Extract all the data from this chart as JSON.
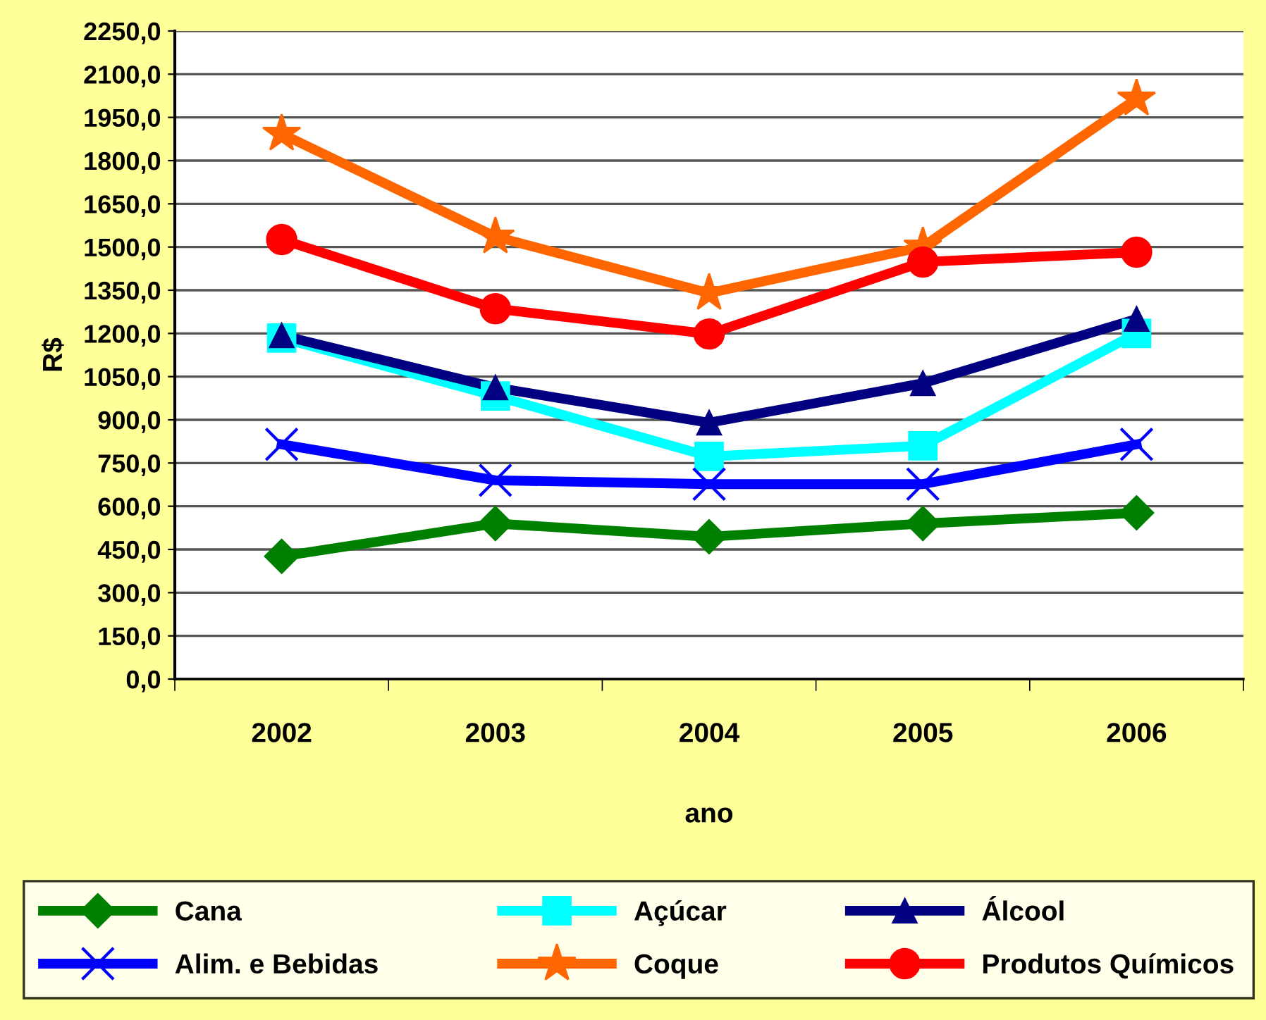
{
  "chart_data": {
    "type": "line",
    "xlabel": "ano",
    "ylabel": "R$",
    "categories": [
      "2002",
      "2003",
      "2004",
      "2005",
      "2006"
    ],
    "series": [
      {
        "name": "Cana",
        "color": "#008000",
        "marker": "diamond",
        "values": [
          426,
          540,
          494,
          540,
          577
        ]
      },
      {
        "name": "Açúcar",
        "color": "#00ffff",
        "marker": "square",
        "values": [
          1184,
          983,
          773,
          810,
          1200
        ]
      },
      {
        "name": "Álcool",
        "color": "#000080",
        "marker": "triangle",
        "values": [
          1193,
          1012,
          890,
          1027,
          1250
        ]
      },
      {
        "name": "Alim. e Bebidas",
        "color": "#0000ff",
        "marker": "cross",
        "values": [
          815,
          690,
          677,
          677,
          815
        ]
      },
      {
        "name": "Coque",
        "color": "#ff6600",
        "marker": "star",
        "values": [
          1893,
          1536,
          1340,
          1501,
          2015
        ]
      },
      {
        "name": "Produtos Químicos",
        "color": "#ff0000",
        "marker": "circle",
        "values": [
          1526,
          1286,
          1198,
          1448,
          1482
        ]
      }
    ],
    "ylim": [
      0,
      2250
    ],
    "yticks": [
      {
        "value": 0,
        "label": "0,0"
      },
      {
        "value": 150,
        "label": "150,0"
      },
      {
        "value": 300,
        "label": "300,0"
      },
      {
        "value": 450,
        "label": "450,0"
      },
      {
        "value": 600,
        "label": "600,0"
      },
      {
        "value": 750,
        "label": "750,0"
      },
      {
        "value": 900,
        "label": "900,0"
      },
      {
        "value": 1050,
        "label": "1050,0"
      },
      {
        "value": 1200,
        "label": "1200,0"
      },
      {
        "value": 1350,
        "label": "1350,0"
      },
      {
        "value": 1500,
        "label": "1500,0"
      },
      {
        "value": 1650,
        "label": "1650,0"
      },
      {
        "value": 1800,
        "label": "1800,0"
      },
      {
        "value": 1950,
        "label": "1950,0"
      },
      {
        "value": 2100,
        "label": "2100,0"
      },
      {
        "value": 2250,
        "label": "2250,0"
      }
    ],
    "grid": "y",
    "legend": "bottom",
    "line_style": "solid"
  }
}
